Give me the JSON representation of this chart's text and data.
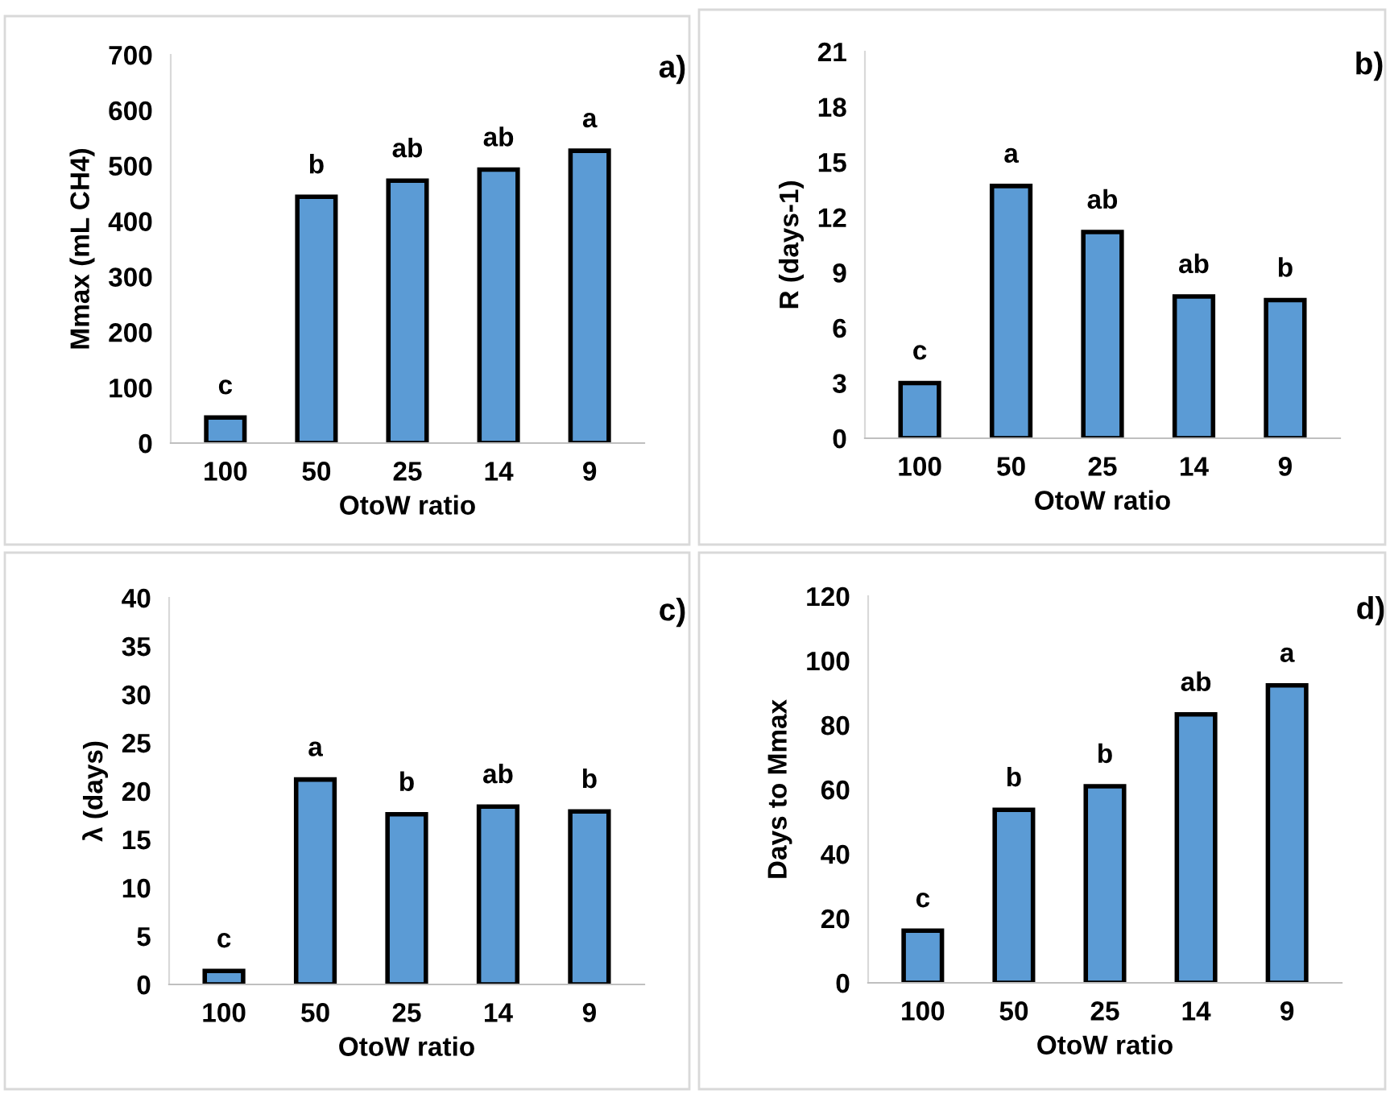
{
  "chart_data": [
    {
      "type": "bar",
      "categories": [
        "100",
        "50",
        "25",
        "14",
        "9"
      ],
      "values": [
        46,
        444,
        473,
        493,
        527
      ],
      "color": "#5b9bd5",
      "xlabel": "OtoW ratio",
      "ylabel": "Mmax (mL CH4)",
      "ylim": [
        0,
        700
      ],
      "yticks": [
        0,
        100,
        200,
        300,
        400,
        500,
        600,
        700
      ],
      "grid": false,
      "annotations": [
        "a)",
        {
          "text": "c",
          "x": "100",
          "y": 46
        },
        {
          "text": "b",
          "x": "50",
          "y": 444
        },
        {
          "text": "ab",
          "x": "25",
          "y": 473
        },
        {
          "text": "ab",
          "x": "14",
          "y": 493
        },
        {
          "text": "a",
          "x": "9",
          "y": 527
        }
      ]
    },
    {
      "type": "bar",
      "categories": [
        "100",
        "50",
        "25",
        "14",
        "9"
      ],
      "values": [
        3.0,
        13.7,
        11.2,
        7.7,
        7.5
      ],
      "color": "#5b9bd5",
      "xlabel": "OtoW ratio",
      "ylabel": "R (days-1)",
      "ylim": [
        0,
        21
      ],
      "yticks": [
        0,
        3,
        6,
        9,
        12,
        15,
        18,
        21
      ],
      "grid": false,
      "annotations": [
        "b)",
        {
          "text": "c",
          "x": "100",
          "y": 3.0
        },
        {
          "text": "a",
          "x": "50",
          "y": 13.7
        },
        {
          "text": "ab",
          "x": "25",
          "y": 11.2
        },
        {
          "text": "ab",
          "x": "14",
          "y": 7.7
        },
        {
          "text": "b",
          "x": "9",
          "y": 7.5
        }
      ]
    },
    {
      "type": "bar",
      "categories": [
        "100",
        "50",
        "25",
        "14",
        "9"
      ],
      "values": [
        1.4,
        21.2,
        17.6,
        18.4,
        17.9
      ],
      "color": "#5b9bd5",
      "xlabel": "OtoW ratio",
      "ylabel": "λ (days)",
      "ylim": [
        0,
        40
      ],
      "yticks": [
        0,
        5,
        10,
        15,
        20,
        25,
        30,
        35,
        40
      ],
      "grid": false,
      "annotations": [
        "c)",
        {
          "text": "c",
          "x": "100",
          "y": 1.4
        },
        {
          "text": "a",
          "x": "50",
          "y": 21.2
        },
        {
          "text": "b",
          "x": "25",
          "y": 17.6
        },
        {
          "text": "ab",
          "x": "14",
          "y": 18.4
        },
        {
          "text": "b",
          "x": "9",
          "y": 17.9
        }
      ]
    },
    {
      "type": "bar",
      "categories": [
        "100",
        "50",
        "25",
        "14",
        "9"
      ],
      "values": [
        16.2,
        53.7,
        61,
        83.3,
        92.3
      ],
      "color": "#5b9bd5",
      "xlabel": "OtoW ratio",
      "ylabel": "Days to Mmax",
      "ylim": [
        0,
        120
      ],
      "yticks": [
        0,
        20,
        40,
        60,
        80,
        100,
        120
      ],
      "grid": false,
      "annotations": [
        "d)",
        {
          "text": "c",
          "x": "100",
          "y": 16.2
        },
        {
          "text": "b",
          "x": "50",
          "y": 53.7
        },
        {
          "text": "b",
          "x": "25",
          "y": 61
        },
        {
          "text": "ab",
          "x": "14",
          "y": 83.3
        },
        {
          "text": "a",
          "x": "9",
          "y": 92.3
        }
      ]
    }
  ]
}
